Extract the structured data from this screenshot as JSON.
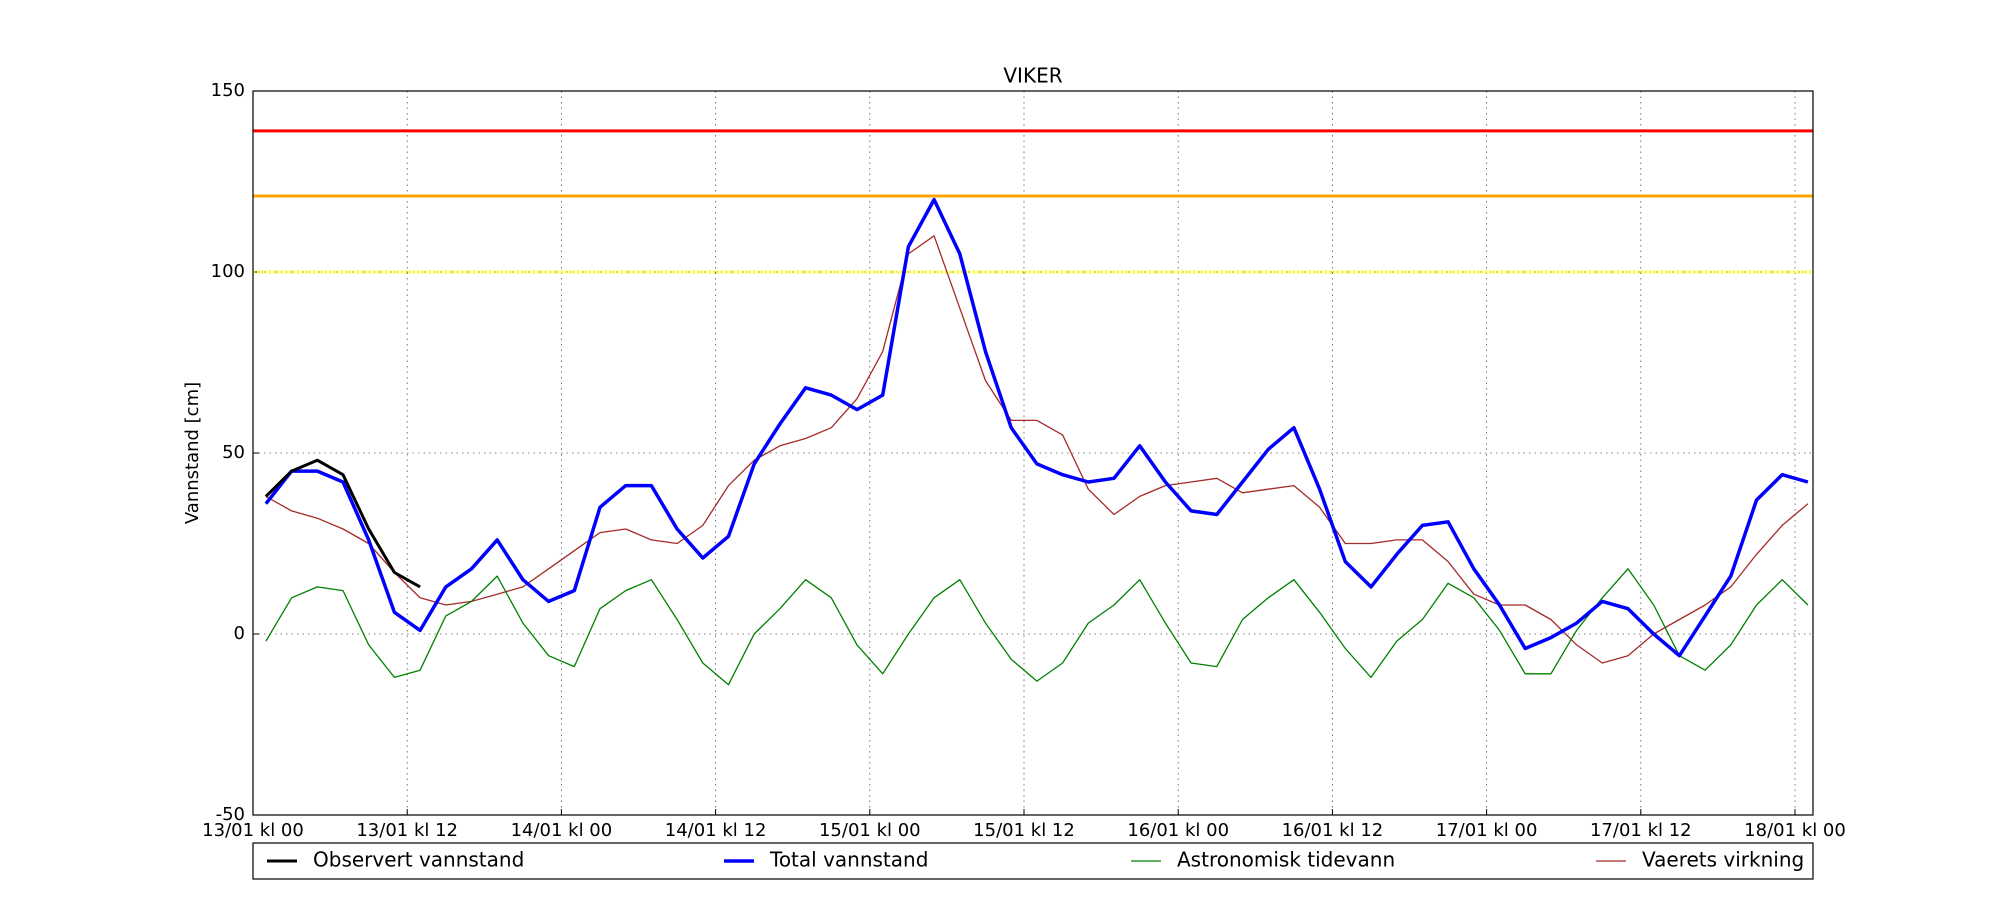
{
  "chart_data": {
    "type": "line",
    "title": "VIKER",
    "ylabel": "Vannstand [cm]",
    "x": [
      1,
      3,
      5,
      7,
      9,
      11,
      13,
      15,
      17,
      19,
      21,
      23,
      25,
      27,
      29,
      31,
      33,
      35,
      37,
      39,
      41,
      43,
      45,
      47,
      49,
      51,
      53,
      55,
      57,
      59,
      61,
      63,
      65,
      67,
      69,
      71,
      73,
      75,
      77,
      79,
      81,
      83,
      85,
      87,
      89,
      91,
      93,
      95,
      97,
      99,
      101,
      103,
      105,
      107,
      109,
      111,
      113,
      115,
      117,
      119,
      121
    ],
    "series": [
      {
        "name": "Observert vannstand",
        "color": "#000000",
        "linewidth": 3,
        "values": [
          38,
          45,
          48,
          44,
          29,
          17,
          13,
          null,
          null,
          null,
          null,
          null,
          null,
          null,
          null,
          null,
          null,
          null,
          null,
          null,
          null,
          null,
          null,
          null,
          null,
          null,
          null,
          null,
          null,
          null,
          null,
          null,
          null,
          null,
          null,
          null,
          null,
          null,
          null,
          null,
          null,
          null,
          null,
          null,
          null,
          null,
          null,
          null,
          null,
          null,
          null,
          null,
          null,
          null,
          null,
          null,
          null,
          null,
          null,
          null,
          null
        ]
      },
      {
        "name": "Total vannstand",
        "color": "#0000ff",
        "linewidth": 3.5,
        "values": [
          36,
          45,
          45,
          42,
          26,
          6,
          1,
          13,
          18,
          26,
          15,
          9,
          12,
          35,
          41,
          41,
          29,
          21,
          27,
          47,
          58,
          68,
          66,
          62,
          66,
          107,
          120,
          105,
          78,
          57,
          47,
          44,
          42,
          43,
          52,
          42,
          34,
          33,
          42,
          51,
          57,
          40,
          20,
          13,
          22,
          30,
          31,
          18,
          8,
          -4,
          -1,
          3,
          9,
          7,
          0,
          -6,
          5,
          16,
          37,
          44,
          42
        ]
      },
      {
        "name": "Astronomisk tidevann",
        "color": "#008000",
        "linewidth": 1.3,
        "values": [
          -2,
          10,
          13,
          12,
          -3,
          -12,
          -10,
          5,
          9,
          16,
          3,
          -6,
          -9,
          7,
          12,
          15,
          4,
          -8,
          -14,
          0,
          7,
          15,
          10,
          -3,
          -11,
          0,
          10,
          15,
          3,
          -7,
          -13,
          -8,
          3,
          8,
          15,
          3,
          -8,
          -9,
          4,
          10,
          15,
          6,
          -4,
          -12,
          -2,
          4,
          14,
          10,
          1,
          -11,
          -11,
          1,
          10,
          18,
          8,
          -6,
          -10,
          -3,
          8,
          15,
          8
        ]
      },
      {
        "name": "Vaerets virkning",
        "color": "#a52a2a",
        "linewidth": 1.3,
        "values": [
          38,
          34,
          32,
          29,
          25,
          17,
          10,
          8,
          9,
          11,
          13,
          18,
          23,
          28,
          29,
          26,
          25,
          30,
          41,
          48,
          52,
          54,
          57,
          65,
          78,
          105,
          110,
          90,
          70,
          59,
          59,
          55,
          40,
          33,
          38,
          41,
          42,
          43,
          39,
          40,
          41,
          35,
          25,
          25,
          26,
          26,
          20,
          11,
          8,
          8,
          4,
          -3,
          -8,
          -6,
          0,
          4,
          8,
          13,
          22,
          30,
          36
        ]
      }
    ],
    "thresholds": [
      {
        "value": 139,
        "color": "#ff0000",
        "style": "solid"
      },
      {
        "value": 121,
        "color": "#ffa500",
        "style": "solid"
      },
      {
        "value": 100,
        "color": "#ffff00",
        "style": "dotted"
      }
    ],
    "xlim": [
      0,
      121.4
    ],
    "xticks": [
      {
        "value": 0,
        "label": "13/01 kl 00"
      },
      {
        "value": 12,
        "label": "13/01 kl 12"
      },
      {
        "value": 24,
        "label": "14/01 kl 00"
      },
      {
        "value": 36,
        "label": "14/01 kl 12"
      },
      {
        "value": 48,
        "label": "15/01 kl 00"
      },
      {
        "value": 60,
        "label": "15/01 kl 12"
      },
      {
        "value": 72,
        "label": "16/01 kl 00"
      },
      {
        "value": 84,
        "label": "16/01 kl 12"
      },
      {
        "value": 96,
        "label": "17/01 kl 00"
      },
      {
        "value": 108,
        "label": "17/01 kl 12"
      },
      {
        "value": 120,
        "label": "18/01 kl 00"
      }
    ],
    "ylim": [
      -50,
      150
    ],
    "yticks": [
      -50,
      0,
      50,
      100,
      150
    ],
    "grid": true,
    "legend": "bottom"
  }
}
